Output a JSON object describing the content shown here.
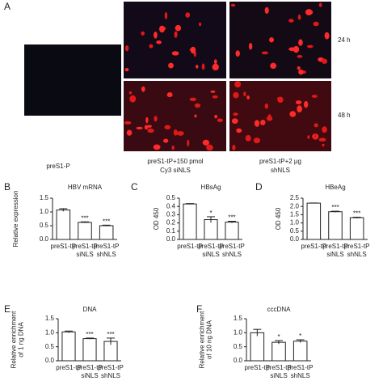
{
  "panel_a": {
    "label": "A",
    "time_labels": [
      "24 h",
      "48 h"
    ],
    "image_captions": [
      [
        "preS1-P"
      ],
      [
        "preS1-tP+150 pmol",
        "Cy3 siNLS"
      ],
      [
        "preS1-tP+2 μg",
        "shNLS"
      ]
    ]
  },
  "chart_data": [
    {
      "type": "bar",
      "label": "B",
      "title": "HBV mRNA",
      "ylabel": [
        "Relative expression"
      ],
      "categories": [
        [
          "preS1-tP"
        ],
        [
          "preS1-tP",
          "siNLS"
        ],
        [
          "preS1-tP",
          "shNLS"
        ]
      ],
      "values": [
        1.07,
        0.62,
        0.5
      ],
      "errors": [
        0.05,
        0.02,
        0.02
      ],
      "significance": [
        null,
        "***",
        "***"
      ],
      "ylim": [
        0,
        1.5
      ],
      "yticks": [
        {
          "value": 0,
          "label": "0.0"
        },
        0.5,
        {
          "value": 1,
          "label": "1.0"
        },
        1.5
      ],
      "color": "#ffffff"
    },
    {
      "type": "bar",
      "label": "C",
      "title": "HBsAg",
      "ylabel": [
        "OD 450"
      ],
      "categories": [
        [
          "preS1-tP"
        ],
        [
          "preS1-tP",
          "siNLS"
        ],
        [
          "preS1-tP",
          "shNLS"
        ]
      ],
      "values": [
        0.43,
        0.24,
        0.21
      ],
      "errors": [
        0.005,
        0.035,
        0.01
      ],
      "significance": [
        null,
        "*",
        "***"
      ],
      "ylim": [
        0,
        0.5
      ],
      "yticks": [
        {
          "value": 0,
          "label": "0.0"
        },
        0.1,
        0.2,
        0.3,
        0.4,
        0.5
      ],
      "color": "#ffffff"
    },
    {
      "type": "bar",
      "label": "D",
      "title": "HBeAg",
      "ylabel": [
        "OD 450"
      ],
      "categories": [
        [
          "preS1-tP"
        ],
        [
          "preS1-tP",
          "siNLS"
        ],
        [
          "preS1-tP",
          "shNLS"
        ]
      ],
      "values": [
        2.2,
        1.68,
        1.32
      ],
      "errors": [
        0.01,
        0.03,
        0.03
      ],
      "significance": [
        null,
        "***",
        "***"
      ],
      "ylim": [
        0,
        2.5
      ],
      "yticks": [
        {
          "value": 0,
          "label": "0.0"
        },
        0.5,
        {
          "value": 1,
          "label": "1.0"
        },
        1.5,
        {
          "value": 2,
          "label": "2.0"
        },
        2.5
      ],
      "color": "#ffffff"
    },
    {
      "type": "bar",
      "label": "E",
      "title": "DNA",
      "ylabel": [
        "Relative enrichment",
        "of 1 ng DNA"
      ],
      "categories": [
        [
          "preS1-tP"
        ],
        [
          "preS1-tP",
          "siNLS"
        ],
        [
          "preS1-tP",
          "shNLS"
        ]
      ],
      "values": [
        1.03,
        0.79,
        0.69
      ],
      "errors": [
        0.03,
        0.02,
        0.12
      ],
      "significance": [
        null,
        "***",
        "***"
      ],
      "ylim": [
        0,
        1.5
      ],
      "yticks": [
        {
          "value": 0,
          "label": "0.0"
        },
        0.5,
        {
          "value": 1,
          "label": "1.0"
        },
        1.5
      ],
      "color": "#ffffff"
    },
    {
      "type": "bar",
      "label": "F",
      "title": "cccDNA",
      "ylabel": [
        "Relative enrichment",
        "of 10 ng DNA"
      ],
      "categories": [
        [
          "preS1-tP"
        ],
        [
          "preS1-tP",
          "siNLS"
        ],
        [
          "preS1-tP",
          "shNLS"
        ]
      ],
      "values": [
        1.0,
        0.66,
        0.7
      ],
      "errors": [
        0.12,
        0.06,
        0.05
      ],
      "significance": [
        null,
        "*",
        "*"
      ],
      "ylim": [
        0,
        1.5
      ],
      "yticks": [
        {
          "value": 0,
          "label": "0.0"
        },
        0.5,
        {
          "value": 1,
          "label": "1.0"
        },
        1.5
      ],
      "color": "#ffffff"
    }
  ]
}
